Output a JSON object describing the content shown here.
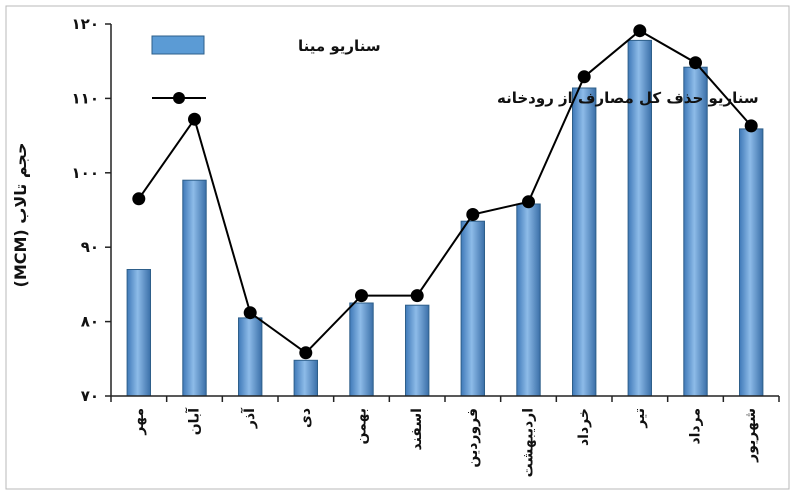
{
  "chart_data": {
    "type": "bar",
    "categories": [
      "مهر",
      "آبان",
      "آذر",
      "دی",
      "بهمن",
      "اسفند",
      "فروردین",
      "اردیبهشت",
      "خرداد",
      "تیر",
      "مرداد",
      "شهریور"
    ],
    "series": [
      {
        "name": "سناریو مینا",
        "kind": "bar",
        "color": "#5b9bd5",
        "values": [
          87,
          99,
          80.5,
          74.8,
          82.5,
          82.2,
          93.5,
          95.8,
          111.4,
          117.8,
          114.2,
          105.9
        ]
      },
      {
        "name": "سناریو حذف کل مصارف از رودخانه",
        "kind": "line",
        "color": "#000000",
        "values": [
          96.5,
          107.2,
          81.2,
          75.8,
          83.5,
          83.5,
          94.4,
          96.1,
          112.9,
          119.1,
          114.8,
          106.3
        ]
      }
    ],
    "ylabel": "حجم تالاب (MCM)",
    "ylim": [
      70,
      120
    ],
    "yticks": [
      70,
      80,
      90,
      100,
      110,
      120
    ],
    "ytick_labels": [
      "۷۰",
      "۸۰",
      "۹۰",
      "۱۰۰",
      "۱۱۰",
      "۱۲۰"
    ],
    "grid": false,
    "legend_position": "top-left"
  }
}
